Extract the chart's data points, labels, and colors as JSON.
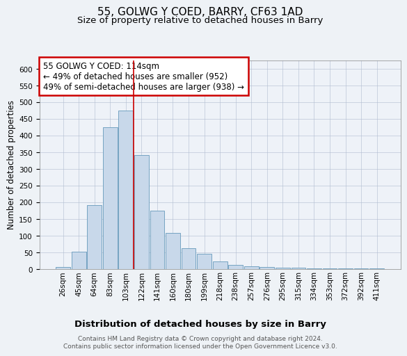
{
  "title": "55, GOLWG Y COED, BARRY, CF63 1AD",
  "subtitle": "Size of property relative to detached houses in Barry",
  "xlabel": "Distribution of detached houses by size in Barry",
  "ylabel": "Number of detached properties",
  "bin_labels": [
    "26sqm",
    "45sqm",
    "64sqm",
    "83sqm",
    "103sqm",
    "122sqm",
    "141sqm",
    "160sqm",
    "180sqm",
    "199sqm",
    "218sqm",
    "238sqm",
    "257sqm",
    "276sqm",
    "295sqm",
    "315sqm",
    "334sqm",
    "353sqm",
    "372sqm",
    "392sqm",
    "411sqm"
  ],
  "bar_heights": [
    5,
    52,
    190,
    425,
    475,
    340,
    175,
    107,
    62,
    45,
    22,
    12,
    8,
    5,
    4,
    3,
    2,
    1,
    1,
    1,
    1
  ],
  "bar_color": "#c8d8ea",
  "bar_edge_color": "#6699bb",
  "vline_color": "#cc0000",
  "vline_pos": 4.5,
  "annotation_text": "55 GOLWG Y COED: 114sqm\n← 49% of detached houses are smaller (952)\n49% of semi-detached houses are larger (938) →",
  "annotation_box_color": "white",
  "annotation_box_edge_color": "#cc0000",
  "ylim": [
    0,
    625
  ],
  "yticks": [
    0,
    50,
    100,
    150,
    200,
    250,
    300,
    350,
    400,
    450,
    500,
    550,
    600
  ],
  "footer_text": "Contains HM Land Registry data © Crown copyright and database right 2024.\nContains public sector information licensed under the Open Government Licence v3.0.",
  "title_fontsize": 11,
  "subtitle_fontsize": 9.5,
  "xlabel_fontsize": 9.5,
  "ylabel_fontsize": 8.5,
  "tick_fontsize": 7.5,
  "annotation_fontsize": 8.5,
  "footer_fontsize": 6.5,
  "background_color": "#eef2f6",
  "plot_bg_color": "#eef2f8"
}
